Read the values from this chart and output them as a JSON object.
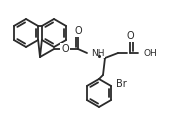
{
  "bg": "#ffffff",
  "lc": "#2a2a2a",
  "lw": 1.3,
  "fs": 6.5,
  "xlim": [
    0,
    195
  ],
  "ylim": [
    127,
    0
  ]
}
